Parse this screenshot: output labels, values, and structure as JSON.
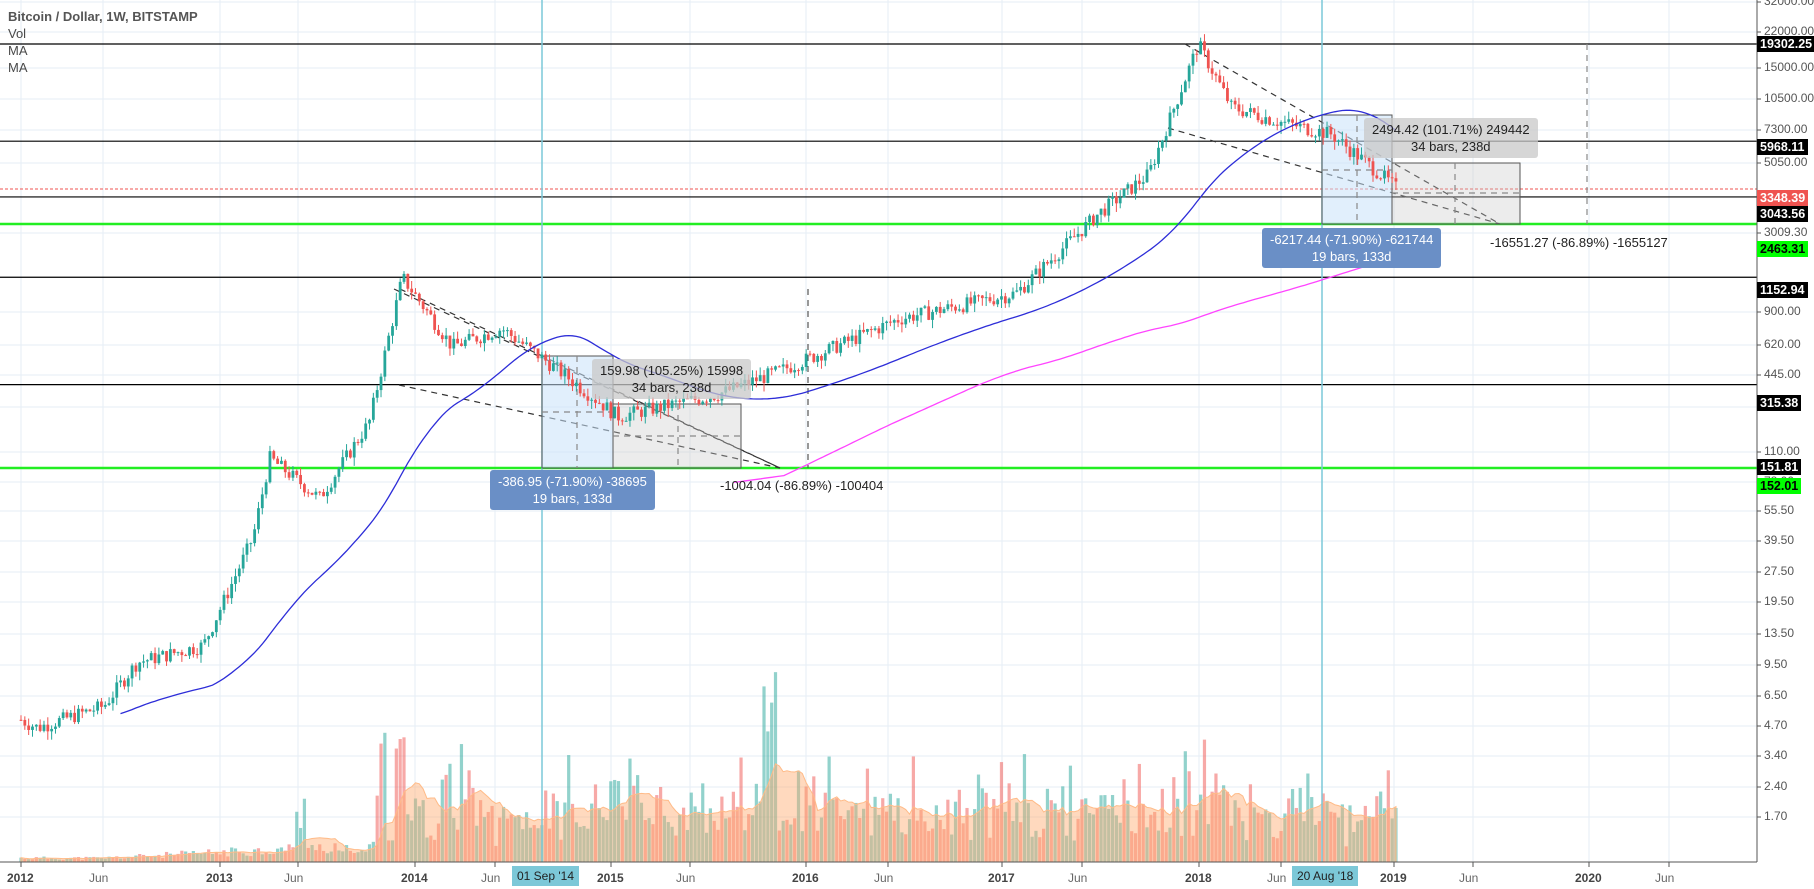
{
  "header": {
    "title": "Bitcoin / Dollar, 1W, BITSTAMP",
    "indicators": [
      "Vol",
      "MA",
      "MA"
    ]
  },
  "price_axis": {
    "ticks": [
      "32000.00",
      "22000.00",
      "15000.00",
      "10500.00",
      "7300.00",
      "5050.00",
      "3009.30",
      "900.00",
      "620.00",
      "445.00",
      "215.00",
      "110.00",
      "78.00",
      "55.50",
      "39.50",
      "27.50",
      "19.50",
      "13.50",
      "9.50",
      "6.50",
      "4.70",
      "3.40",
      "2.40",
      "1.70"
    ],
    "tags": [
      {
        "value": "19302.25",
        "bg": "#000000",
        "fg": "#ffffff"
      },
      {
        "value": "5968.11",
        "bg": "#000000",
        "fg": "#ffffff"
      },
      {
        "value": "3348.39",
        "bg": "#ef5350",
        "fg": "#ffffff"
      },
      {
        "value": "3043.56",
        "bg": "#000000",
        "fg": "#ffffff"
      },
      {
        "value": "2463.31",
        "bg": "#00ff00",
        "fg": "#000000"
      },
      {
        "value": "1152.94",
        "bg": "#000000",
        "fg": "#ffffff"
      },
      {
        "value": "315.38",
        "bg": "#000000",
        "fg": "#ffffff"
      },
      {
        "value": "151.81",
        "bg": "#000000",
        "fg": "#ffffff"
      },
      {
        "value": "152.01",
        "bg": "#00ff00",
        "fg": "#000000"
      }
    ]
  },
  "time_axis": {
    "ticks": [
      "2012",
      "Jun",
      "2013",
      "Jun",
      "2014",
      "Jun",
      "2015",
      "Jun",
      "2016",
      "Jun",
      "2017",
      "Jun",
      "2018",
      "Jun",
      "2019",
      "Jun",
      "2020",
      "Jun"
    ],
    "cursor_tags": [
      "01 Sep '14",
      "20 Aug '18"
    ]
  },
  "measurements": {
    "m1": {
      "line1": "159.98 (105.25%) 15998",
      "line2": "34 bars, 238d"
    },
    "m2": {
      "line1": "-386.95 (-71.90%) -38695",
      "line2": "19 bars, 133d"
    },
    "m3": {
      "line1": "-1004.04 (-86.89%) -100404"
    },
    "m4": {
      "line1": "2494.42 (101.71%) 249442",
      "line2": "34 bars, 238d"
    },
    "m5": {
      "line1": "-6217.44 (-71.90%) -621744",
      "line2": "19 bars, 133d"
    },
    "m6": {
      "line1": "-16551.27 (-86.89%) -1655127"
    }
  },
  "colors": {
    "up": "#26a69a",
    "down": "#ef5350",
    "ma_fast": "#2d2dd8",
    "ma_slow": "#ff44ff",
    "support": "#00ff00",
    "resistance": "#000000",
    "cursor": "#7cc8d8",
    "vol_ma": "#ffcc99"
  },
  "chart_data": {
    "type": "candlestick",
    "title": "Bitcoin / Dollar, 1W, BITSTAMP",
    "scale": "log",
    "ylim": [
      1.7,
      32000
    ],
    "x_range": [
      "2012-01",
      "2020-10"
    ],
    "approx_weekly_close_path": [
      {
        "date": "2012-01",
        "price": 5.5
      },
      {
        "date": "2012-02",
        "price": 5.0
      },
      {
        "date": "2012-06",
        "price": 6.5
      },
      {
        "date": "2012-08",
        "price": 11.0
      },
      {
        "date": "2012-12",
        "price": 13.5
      },
      {
        "date": "2013-03",
        "price": 50
      },
      {
        "date": "2013-04",
        "price": 130
      },
      {
        "date": "2013-07",
        "price": 80
      },
      {
        "date": "2013-10",
        "price": 200
      },
      {
        "date": "2013-12",
        "price": 1152.94
      },
      {
        "date": "2014-03",
        "price": 500
      },
      {
        "date": "2014-06",
        "price": 620
      },
      {
        "date": "2014-09",
        "price": 400
      },
      {
        "date": "2015-01",
        "price": 215
      },
      {
        "date": "2015-07",
        "price": 280
      },
      {
        "date": "2015-11",
        "price": 380
      },
      {
        "date": "2016-06",
        "price": 700
      },
      {
        "date": "2017-01",
        "price": 950
      },
      {
        "date": "2017-06",
        "price": 2500
      },
      {
        "date": "2017-09",
        "price": 4000
      },
      {
        "date": "2017-12",
        "price": 19302.25
      },
      {
        "date": "2018-02",
        "price": 9000
      },
      {
        "date": "2018-05",
        "price": 7500
      },
      {
        "date": "2018-08",
        "price": 6500
      },
      {
        "date": "2018-11",
        "price": 4000
      },
      {
        "date": "2018-12",
        "price": 3348.39
      }
    ],
    "horizontal_levels": [
      19302.25,
      5968.11,
      3043.56,
      2463.31,
      1152.94,
      315.38,
      151.81
    ],
    "last_price": 3348.39,
    "series": [
      {
        "name": "MA (fast)",
        "color": "#2d2dd8"
      },
      {
        "name": "MA (slow)",
        "color": "#ff44ff"
      },
      {
        "name": "Vol",
        "color": "#26a69a / #ef5350"
      }
    ],
    "annotations": [
      "159.98 (105.25%) 15998 | 34 bars, 238d",
      "-386.95 (-71.90%) -38695 | 19 bars, 133d",
      "-1004.04 (-86.89%) -100404",
      "2494.42 (101.71%) 249442 | 34 bars, 238d",
      "-6217.44 (-71.90%) -621744 | 19 bars, 133d",
      "-16551.27 (-86.89%) -1655127"
    ],
    "xlabel": "",
    "ylabel": "",
    "grid": true
  }
}
